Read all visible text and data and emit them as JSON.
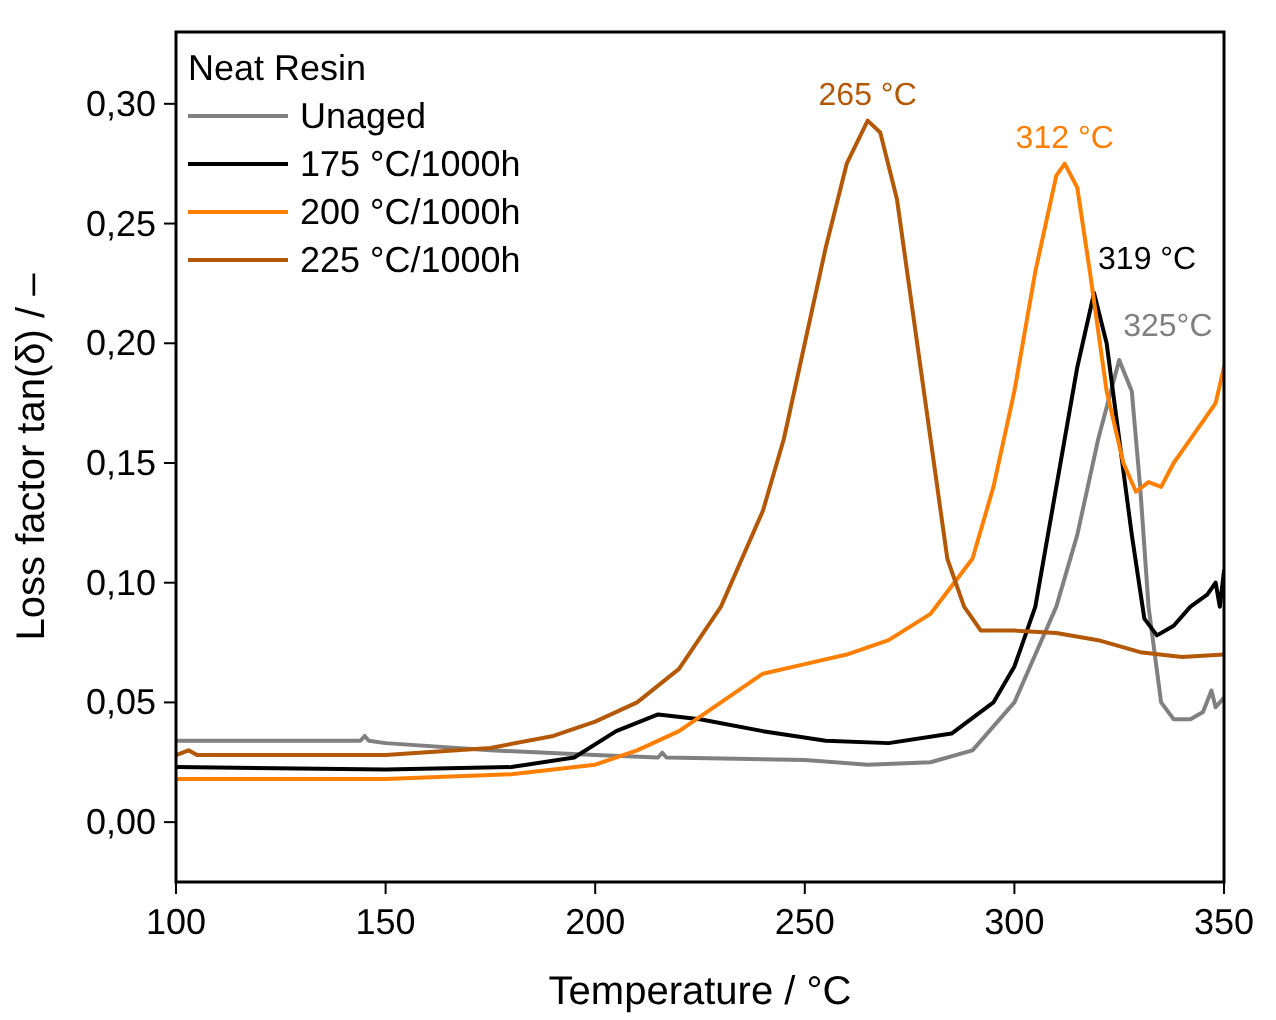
{
  "chart_data": {
    "type": "line",
    "xlabel": "Temperature / °C",
    "ylabel": "Loss factor tan(δ) / –",
    "legend_title": "Neat Resin",
    "legend": "top left",
    "grid": false,
    "xlim": [
      100,
      350
    ],
    "ylim": [
      -0.025,
      0.33
    ],
    "xticks": [
      100,
      150,
      200,
      250,
      300,
      350
    ],
    "yticks": [
      {
        "value": 0,
        "label": "0,00"
      },
      {
        "value": 0.05,
        "label": "0,05"
      },
      {
        "value": 0.1,
        "label": "0,10"
      },
      {
        "value": 0.15,
        "label": "0,15"
      },
      {
        "value": 0.2,
        "label": "0,20"
      },
      {
        "value": 0.25,
        "label": "0,25"
      },
      {
        "value": 0.3,
        "label": "0,30"
      }
    ],
    "series": [
      {
        "name": "Unaged",
        "color": "#808080",
        "x": [
          100,
          144,
          145,
          146,
          150,
          175,
          200,
          215,
          216,
          217,
          250,
          265,
          280,
          290,
          300,
          305,
          310,
          315,
          320,
          325,
          328,
          330,
          332,
          335,
          338,
          342,
          345,
          347,
          348,
          350
        ],
        "values": [
          0.034,
          0.034,
          0.036,
          0.034,
          0.033,
          0.03,
          0.028,
          0.027,
          0.029,
          0.027,
          0.026,
          0.024,
          0.025,
          0.03,
          0.05,
          0.07,
          0.09,
          0.12,
          0.16,
          0.193,
          0.18,
          0.14,
          0.09,
          0.05,
          0.043,
          0.043,
          0.046,
          0.055,
          0.048,
          0.052
        ]
      },
      {
        "name": "175 °C/1000h",
        "color": "#000000",
        "x": [
          100,
          150,
          180,
          195,
          205,
          215,
          225,
          240,
          255,
          270,
          285,
          295,
          300,
          305,
          310,
          315,
          319,
          322,
          325,
          328,
          331,
          334,
          338,
          342,
          346,
          348,
          349,
          350
        ],
        "values": [
          0.023,
          0.022,
          0.023,
          0.027,
          0.038,
          0.045,
          0.043,
          0.038,
          0.034,
          0.033,
          0.037,
          0.05,
          0.065,
          0.09,
          0.14,
          0.19,
          0.221,
          0.2,
          0.16,
          0.12,
          0.085,
          0.078,
          0.082,
          0.09,
          0.095,
          0.1,
          0.09,
          0.105
        ]
      },
      {
        "name": "200 °C/1000h",
        "color": "#ff8000",
        "x": [
          100,
          150,
          180,
          200,
          210,
          220,
          230,
          240,
          250,
          260,
          270,
          280,
          290,
          295,
          300,
          305,
          310,
          312,
          315,
          318,
          322,
          326,
          329,
          332,
          335,
          338,
          342,
          346,
          348,
          350
        ],
        "values": [
          0.018,
          0.018,
          0.02,
          0.024,
          0.03,
          0.038,
          0.05,
          0.062,
          0.066,
          0.07,
          0.076,
          0.087,
          0.11,
          0.14,
          0.18,
          0.23,
          0.27,
          0.275,
          0.265,
          0.23,
          0.18,
          0.15,
          0.138,
          0.142,
          0.14,
          0.15,
          0.16,
          0.17,
          0.175,
          0.19
        ]
      },
      {
        "name": "225 °C/1000h",
        "color": "#b35806",
        "x": [
          100,
          103,
          105,
          150,
          175,
          190,
          200,
          210,
          220,
          230,
          240,
          245,
          250,
          255,
          260,
          265,
          268,
          272,
          276,
          280,
          284,
          288,
          292,
          300,
          310,
          320,
          330,
          340,
          350
        ],
        "values": [
          0.028,
          0.03,
          0.028,
          0.028,
          0.031,
          0.036,
          0.042,
          0.05,
          0.064,
          0.09,
          0.13,
          0.16,
          0.2,
          0.24,
          0.275,
          0.293,
          0.288,
          0.26,
          0.21,
          0.16,
          0.11,
          0.09,
          0.08,
          0.08,
          0.079,
          0.076,
          0.071,
          0.069,
          0.07
        ]
      }
    ],
    "annotations": [
      {
        "text": "265 °C",
        "x": 265,
        "y": 0.293
      },
      {
        "text": "312 °C",
        "x": 312,
        "y": 0.275
      },
      {
        "text": "319 °C",
        "x": 319,
        "y": 0.221
      },
      {
        "text": "325°C",
        "x": 325,
        "y": 0.193
      }
    ]
  }
}
